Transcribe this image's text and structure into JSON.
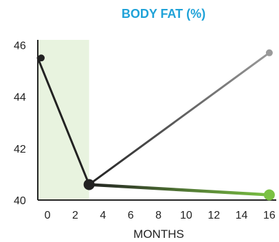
{
  "colors": {
    "title": "#1fa2d8",
    "shade": "#e8f3df",
    "axis": "#222222",
    "dark": "#222222",
    "gray": "#9a9a9a",
    "green": "#7ac143"
  },
  "chart_data": {
    "type": "line",
    "title": "BODY FAT (%)",
    "xlabel": "MONTHS",
    "ylabel": "",
    "xlim": [
      -0.7,
      16.5
    ],
    "ylim": [
      40,
      46.2
    ],
    "x_ticks": [
      0,
      2,
      4,
      6,
      8,
      10,
      12,
      14,
      16
    ],
    "y_ticks": [
      40,
      42,
      44,
      46
    ],
    "shaded_region": {
      "x0": -0.7,
      "x1": 3
    },
    "series": [
      {
        "color": "#222222",
        "points": [
          [
            -0.7,
            45.5
          ],
          [
            3,
            40.6
          ]
        ]
      },
      {
        "color_from": "#222222",
        "color_to": "#9a9a9a",
        "points": [
          [
            3,
            40.6
          ],
          [
            16,
            45.7
          ]
        ]
      },
      {
        "color_from": "#222222",
        "color_to": "#7ac143",
        "points": [
          [
            3,
            40.6
          ],
          [
            16,
            40.2
          ]
        ]
      }
    ],
    "grid": false,
    "legend": "none"
  }
}
